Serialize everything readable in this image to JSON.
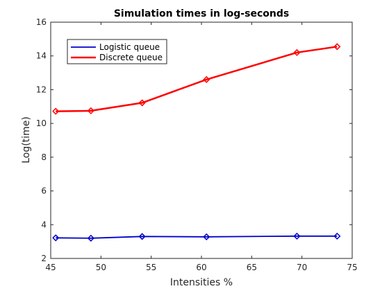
{
  "chart_data": {
    "type": "line",
    "title": "Simulation times in log-seconds",
    "xlabel": "Intensities %",
    "ylabel": "Log(time)",
    "xlim": [
      45,
      75
    ],
    "ylim": [
      2,
      16
    ],
    "xticks": [
      45,
      50,
      55,
      60,
      65,
      70,
      75
    ],
    "yticks": [
      2,
      4,
      6,
      8,
      10,
      12,
      14,
      16
    ],
    "grid": false,
    "legend": "top-left",
    "x": [
      45.5,
      49,
      54.1,
      60.5,
      69.5,
      73.5
    ],
    "series": [
      {
        "name": "Logistic queue",
        "color": "#0000cc",
        "values": [
          3.22,
          3.2,
          3.3,
          3.28,
          3.32,
          3.32
        ]
      },
      {
        "name": "Discrete queue",
        "color": "#ff0000",
        "values": [
          10.72,
          10.75,
          11.22,
          12.6,
          14.2,
          14.55
        ]
      }
    ]
  }
}
